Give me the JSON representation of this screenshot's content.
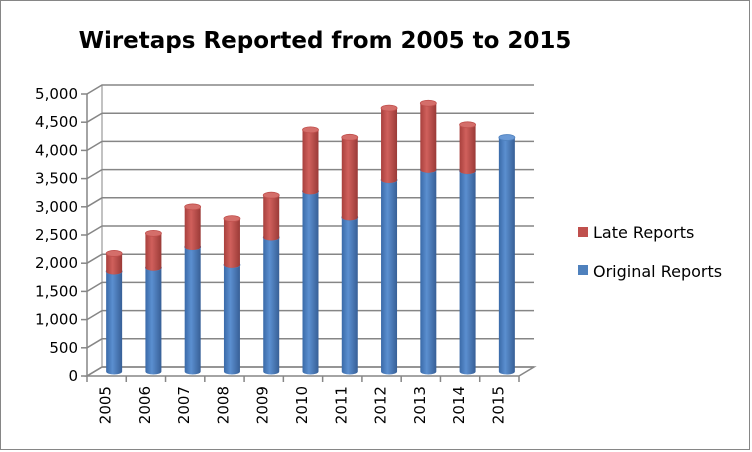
{
  "chart_data": {
    "type": "bar",
    "stacked": true,
    "style": "3d-cylinder",
    "title": "Wiretaps Reported from 2005 to 2015",
    "xlabel": "",
    "ylabel": "",
    "categories": [
      "2005",
      "2006",
      "2007",
      "2008",
      "2009",
      "2010",
      "2011",
      "2012",
      "2013",
      "2014",
      "2015"
    ],
    "series": [
      {
        "name": "Original Reports",
        "color": "#4F81BD",
        "values": [
          1773,
          1839,
          2208,
          1891,
          2376,
          3194,
          2732,
          3395,
          3576,
          3554,
          4148
        ]
      },
      {
        "name": "Late Reports",
        "color": "#C0504D",
        "values": [
          320,
          610,
          710,
          820,
          750,
          1090,
          1420,
          1275,
          1180,
          820,
          0
        ]
      }
    ],
    "ylim": [
      0,
      5000
    ],
    "yticks": [
      "0",
      "500",
      "1,000",
      "1,500",
      "2,000",
      "2,500",
      "3,000",
      "3,500",
      "4,000",
      "4,500",
      "5,000"
    ],
    "grid": true,
    "legend": {
      "placement": "right",
      "entries": [
        "Late Reports",
        "Original Reports"
      ]
    }
  }
}
